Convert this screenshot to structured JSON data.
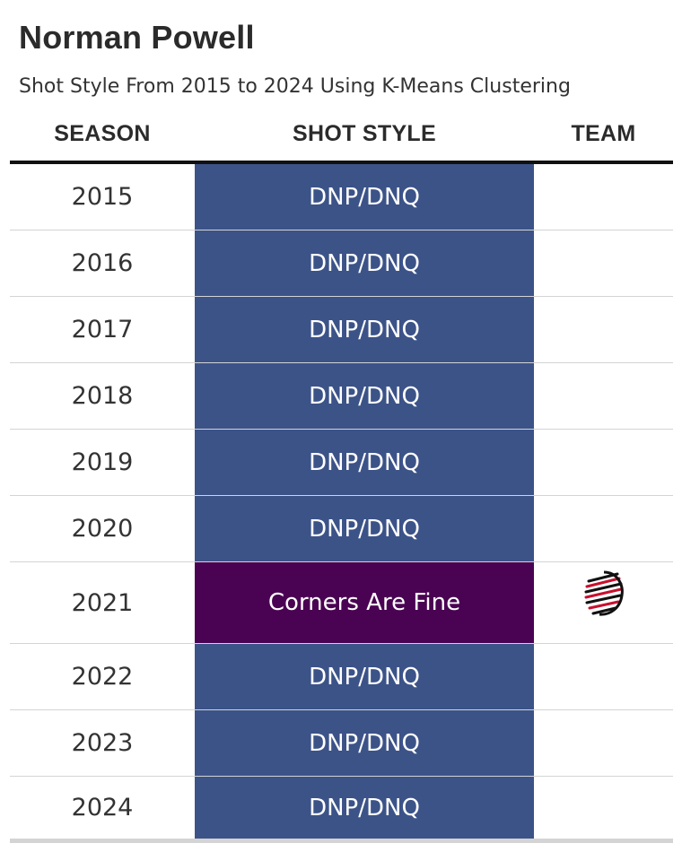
{
  "title": "Norman Powell",
  "subtitle": "Shot Style From 2015 to 2024 Using K-Means Clustering",
  "columns": {
    "season": "SEASON",
    "shot_style": "SHOT STYLE",
    "team": "TEAM"
  },
  "colors": {
    "dnp": "#3c5388",
    "corners_are_fine": "#4a0352",
    "row_rule": "#d4d4d4",
    "header_rule": "#111111"
  },
  "chart_data": {
    "type": "table",
    "title": "Norman Powell",
    "subtitle": "Shot Style From 2015 to 2024 Using K-Means Clustering",
    "columns": [
      "SEASON",
      "SHOT STYLE",
      "TEAM"
    ],
    "rows": [
      {
        "season": "2015",
        "shot_style": "DNP/DNQ",
        "team_icon": ""
      },
      {
        "season": "2016",
        "shot_style": "DNP/DNQ",
        "team_icon": ""
      },
      {
        "season": "2017",
        "shot_style": "DNP/DNQ",
        "team_icon": ""
      },
      {
        "season": "2018",
        "shot_style": "DNP/DNQ",
        "team_icon": ""
      },
      {
        "season": "2019",
        "shot_style": "DNP/DNQ",
        "team_icon": ""
      },
      {
        "season": "2020",
        "shot_style": "DNP/DNQ",
        "team_icon": ""
      },
      {
        "season": "2021",
        "shot_style": "Corners Are Fine",
        "team_icon": "trail-blazers-logo-icon"
      },
      {
        "season": "2022",
        "shot_style": "DNP/DNQ",
        "team_icon": ""
      },
      {
        "season": "2023",
        "shot_style": "DNP/DNQ",
        "team_icon": ""
      },
      {
        "season": "2024",
        "shot_style": "DNP/DNQ",
        "team_icon": ""
      }
    ]
  }
}
